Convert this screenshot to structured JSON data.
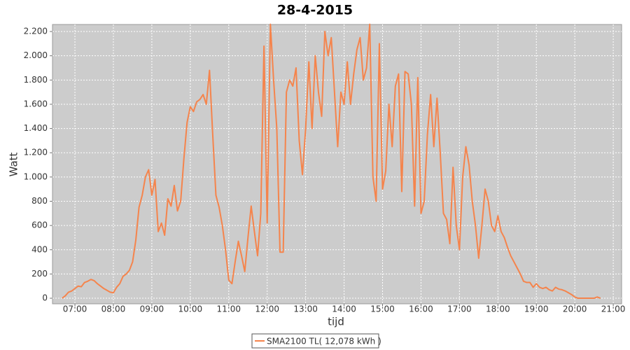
{
  "chart_data": {
    "type": "line",
    "title": "28-4-2015",
    "x_label": "tijd",
    "y_label": "Watt",
    "x": [
      "06:40",
      "06:45",
      "06:50",
      "06:55",
      "07:00",
      "07:05",
      "07:10",
      "07:15",
      "07:20",
      "07:25",
      "07:30",
      "07:35",
      "07:40",
      "07:45",
      "07:50",
      "07:55",
      "08:00",
      "08:05",
      "08:10",
      "08:15",
      "08:20",
      "08:25",
      "08:30",
      "08:35",
      "08:40",
      "08:45",
      "08:50",
      "08:55",
      "09:00",
      "09:05",
      "09:10",
      "09:15",
      "09:20",
      "09:25",
      "09:30",
      "09:35",
      "09:40",
      "09:45",
      "09:50",
      "09:55",
      "10:00",
      "10:05",
      "10:10",
      "10:15",
      "10:20",
      "10:25",
      "10:30",
      "10:35",
      "10:40",
      "10:45",
      "10:50",
      "10:55",
      "11:00",
      "11:05",
      "11:10",
      "11:15",
      "11:20",
      "11:25",
      "11:30",
      "11:35",
      "11:40",
      "11:45",
      "11:50",
      "11:55",
      "12:00",
      "12:05",
      "12:10",
      "12:15",
      "12:20",
      "12:25",
      "12:30",
      "12:35",
      "12:40",
      "12:45",
      "12:50",
      "12:55",
      "13:00",
      "13:05",
      "13:10",
      "13:15",
      "13:20",
      "13:25",
      "13:30",
      "13:35",
      "13:40",
      "13:45",
      "13:50",
      "13:55",
      "14:00",
      "14:05",
      "14:10",
      "14:15",
      "14:20",
      "14:25",
      "14:30",
      "14:35",
      "14:40",
      "14:45",
      "14:50",
      "14:55",
      "15:00",
      "15:05",
      "15:10",
      "15:15",
      "15:20",
      "15:25",
      "15:30",
      "15:35",
      "15:40",
      "15:45",
      "15:50",
      "15:55",
      "16:00",
      "16:05",
      "16:10",
      "16:15",
      "16:20",
      "16:25",
      "16:30",
      "16:35",
      "16:40",
      "16:45",
      "16:50",
      "16:55",
      "17:00",
      "17:05",
      "17:10",
      "17:15",
      "17:20",
      "17:25",
      "17:30",
      "17:35",
      "17:40",
      "17:45",
      "17:50",
      "17:55",
      "18:00",
      "18:05",
      "18:10",
      "18:15",
      "18:20",
      "18:25",
      "18:30",
      "18:35",
      "18:40",
      "18:45",
      "18:50",
      "18:55",
      "19:00",
      "19:05",
      "19:10",
      "19:15",
      "19:20",
      "19:25",
      "19:30",
      "19:35",
      "19:40",
      "19:45",
      "19:50",
      "19:55",
      "20:00",
      "20:05",
      "20:10",
      "20:15",
      "20:20",
      "20:25",
      "20:30",
      "20:35",
      "20:40"
    ],
    "series": [
      {
        "name": "SMA2100 TL( 12,078 kWh )",
        "color": "#f5844c",
        "values": [
          0,
          20,
          50,
          60,
          80,
          100,
          95,
          130,
          140,
          155,
          145,
          120,
          100,
          80,
          65,
          50,
          45,
          90,
          120,
          180,
          200,
          230,
          300,
          480,
          750,
          850,
          1000,
          1060,
          850,
          980,
          550,
          620,
          520,
          820,
          760,
          930,
          720,
          800,
          1150,
          1450,
          1580,
          1540,
          1620,
          1640,
          1680,
          1600,
          1880,
          1350,
          850,
          750,
          600,
          400,
          150,
          120,
          300,
          470,
          350,
          220,
          500,
          760,
          550,
          350,
          700,
          2080,
          620,
          2260,
          1800,
          1400,
          380,
          380,
          1700,
          1800,
          1750,
          1900,
          1300,
          1020,
          1400,
          1950,
          1400,
          2000,
          1700,
          1500,
          2200,
          2000,
          2150,
          1700,
          1250,
          1700,
          1600,
          1950,
          1600,
          1850,
          2050,
          2150,
          1800,
          1900,
          2260,
          1000,
          800,
          2100,
          900,
          1050,
          1600,
          1250,
          1750,
          1850,
          880,
          1870,
          1850,
          1600,
          760,
          1820,
          700,
          800,
          1350,
          1680,
          1250,
          1650,
          1200,
          700,
          650,
          450,
          1080,
          600,
          400,
          1000,
          1250,
          1100,
          800,
          600,
          330,
          600,
          900,
          800,
          600,
          550,
          680,
          550,
          500,
          420,
          350,
          300,
          250,
          200,
          140,
          130,
          130,
          90,
          120,
          90,
          80,
          90,
          70,
          60,
          90,
          75,
          70,
          60,
          45,
          30,
          10,
          0,
          0,
          0,
          0,
          0,
          0,
          10,
          0
        ]
      }
    ],
    "xlim": [
      "06:25",
      "21:13"
    ],
    "xticks": [
      "07:00",
      "08:00",
      "09:00",
      "10:00",
      "11:00",
      "12:00",
      "13:00",
      "14:00",
      "15:00",
      "16:00",
      "17:00",
      "18:00",
      "19:00",
      "20:00",
      "21:00"
    ],
    "ylim": [
      -46,
      2258
    ],
    "yticks": [
      0,
      200,
      400,
      600,
      800,
      {
        "value": 1000,
        "label": "1.000"
      },
      {
        "value": 1200,
        "label": "1.200"
      },
      {
        "value": 1400,
        "label": "1.400"
      },
      {
        "value": 1600,
        "label": "1.600"
      },
      {
        "value": 1800,
        "label": "1.800"
      },
      {
        "value": 2000,
        "label": "2.000"
      },
      {
        "value": 2200,
        "label": "2.200"
      }
    ],
    "grid": true
  }
}
